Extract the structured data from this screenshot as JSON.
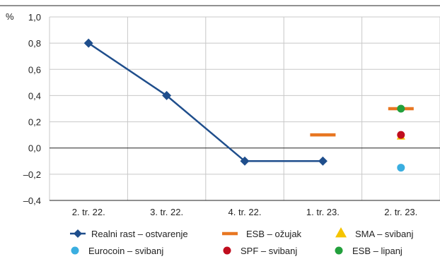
{
  "chart_data": {
    "type": "line",
    "ylabel": "%",
    "ylim": [
      -0.4,
      1.0
    ],
    "yticks": [
      "1,0",
      "0,8",
      "0,6",
      "0,4",
      "0,2",
      "0,0",
      "–0,2",
      "–0,4"
    ],
    "yticks_values": [
      1.0,
      0.8,
      0.6,
      0.4,
      0.2,
      0.0,
      -0.2,
      -0.4
    ],
    "categories": [
      "2. tr. 22.",
      "3. tr. 22.",
      "4. tr. 22.",
      "1. tr. 23.",
      "2. tr. 23."
    ],
    "grid": true,
    "legend_position": "bottom",
    "series": [
      {
        "name": "Realni rast – ostvarenje",
        "kind": "line-diamond",
        "color": "#1f4e8c",
        "values": [
          0.8,
          0.4,
          -0.1,
          -0.1,
          null
        ]
      },
      {
        "name": "ESB – ožujak",
        "kind": "dash",
        "color": "#e87722",
        "values": [
          null,
          null,
          null,
          0.1,
          0.3
        ]
      },
      {
        "name": "SMA – svibanj",
        "kind": "triangle",
        "color": "#f5c400",
        "values": [
          null,
          null,
          null,
          null,
          0.09
        ]
      },
      {
        "name": "Eurocoin – svibanj",
        "kind": "circle",
        "color": "#3aaee0",
        "values": [
          null,
          null,
          null,
          null,
          -0.15
        ]
      },
      {
        "name": "SPF – svibanj",
        "kind": "circle",
        "color": "#c00d1e",
        "values": [
          null,
          null,
          null,
          null,
          0.1
        ]
      },
      {
        "name": "ESB – lipanj",
        "kind": "circle",
        "color": "#22a03c",
        "values": [
          null,
          null,
          null,
          null,
          0.3
        ]
      }
    ]
  }
}
